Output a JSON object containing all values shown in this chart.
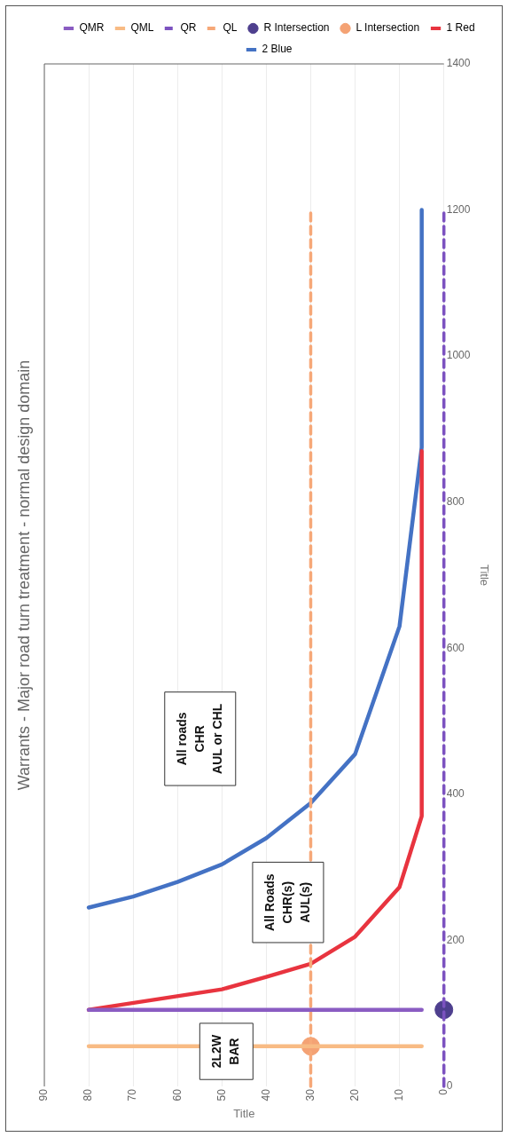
{
  "chart_data": {
    "type": "line",
    "title": "Warrants - Major road turn treatment - normal design domain",
    "xlabel": "Title",
    "ylabel": "Title",
    "xlim": [
      90,
      0
    ],
    "xticks": [
      90,
      80,
      70,
      60,
      50,
      40,
      30,
      20,
      10,
      0
    ],
    "ylim": [
      0,
      1400
    ],
    "yticks": [
      0,
      200,
      400,
      600,
      800,
      1000,
      1200,
      1400
    ],
    "grid": "x",
    "legend": "top",
    "marker": "none",
    "series": [
      {
        "name": "QMR",
        "type": "line",
        "color": "#8a5cc2",
        "line_style": "solid",
        "x": [
          5,
          80
        ],
        "values": [
          105,
          105
        ]
      },
      {
        "name": "QML",
        "type": "line",
        "color": "#f8bb84",
        "line_style": "solid",
        "x": [
          5,
          80
        ],
        "values": [
          55,
          55
        ]
      },
      {
        "name": "QR",
        "type": "line",
        "color": "#7c52c0",
        "line_style": "dashed",
        "x": [
          0,
          0
        ],
        "values": [
          0,
          1200
        ]
      },
      {
        "name": "QL",
        "type": "line",
        "color": "#f6a878",
        "line_style": "dashed",
        "x": [
          30,
          30
        ],
        "values": [
          0,
          1200
        ]
      },
      {
        "name": "R Intersection",
        "type": "scatter",
        "color": "#4e3f8e",
        "marker": "circle",
        "x": [
          0
        ],
        "values": [
          105
        ]
      },
      {
        "name": "L Intersection",
        "type": "scatter",
        "color": "#f4a274",
        "marker": "circle",
        "x": [
          30
        ],
        "values": [
          55
        ]
      },
      {
        "name": "1 Red",
        "type": "line",
        "color": "#e8343f",
        "line_style": "solid",
        "x": [
          80,
          50,
          40,
          30,
          20,
          10,
          5,
          5
        ],
        "values": [
          105,
          133,
          150,
          168,
          205,
          273,
          370,
          870
        ]
      },
      {
        "name": "2 Blue",
        "type": "line",
        "color": "#4472c4",
        "line_style": "solid",
        "x": [
          80,
          70,
          60,
          50,
          40,
          30,
          20,
          10,
          5,
          5
        ],
        "values": [
          245,
          260,
          280,
          304,
          340,
          388,
          455,
          630,
          875,
          1200
        ]
      }
    ],
    "annotations": [
      {
        "text": "2L2W\nBAR",
        "x": 49,
        "y": 48
      },
      "All Roads\nCHR(s)\nAUL(s)",
      "All roads\nCHR\nAUL or CHL"
    ]
  }
}
